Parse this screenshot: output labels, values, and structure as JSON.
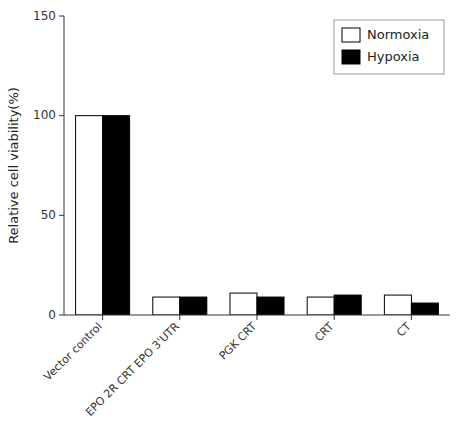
{
  "chart_data": {
    "type": "bar",
    "categories": [
      "Vector control",
      "EPO 2R CRT EPO 3'UTR",
      "PGK CRT",
      "CRT",
      "CT"
    ],
    "series": [
      {
        "name": "Normoxia",
        "color": "#ffffff",
        "values": [
          100,
          9,
          11,
          9,
          10
        ]
      },
      {
        "name": "Hypoxia",
        "color": "#000000",
        "values": [
          100,
          9,
          9,
          10,
          6
        ]
      }
    ],
    "ylabel": "Relative cell viability(%)",
    "ylim": [
      0,
      150
    ],
    "yticks": [
      0,
      50,
      100,
      150
    ],
    "grid": false,
    "legend": "upper right"
  }
}
